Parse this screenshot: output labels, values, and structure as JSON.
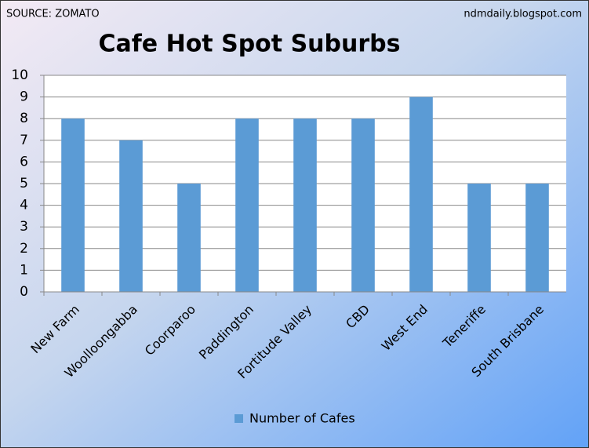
{
  "chart_data": {
    "type": "bar",
    "title": "Cafe Hot Spot Suburbs",
    "source": "SOURCE: ZOMATO",
    "annotation": "ndmdaily.blogspot.com",
    "categories": [
      "New Farm",
      "Woolloongabba",
      "Coorparoo",
      "Paddington",
      "Fortitude Valley",
      "CBD",
      "West End",
      "Teneriffe",
      "South Brisbane"
    ],
    "series": [
      {
        "name": "Number of Cafes",
        "color": "#5b9bd5",
        "values": [
          8,
          7,
          5,
          8,
          8,
          8,
          9,
          5,
          5
        ]
      }
    ],
    "ylim": [
      0,
      10
    ],
    "yticks": [
      0,
      1,
      2,
      3,
      4,
      5,
      6,
      7,
      8,
      9,
      10
    ],
    "grid": true,
    "legend": "bottom"
  }
}
